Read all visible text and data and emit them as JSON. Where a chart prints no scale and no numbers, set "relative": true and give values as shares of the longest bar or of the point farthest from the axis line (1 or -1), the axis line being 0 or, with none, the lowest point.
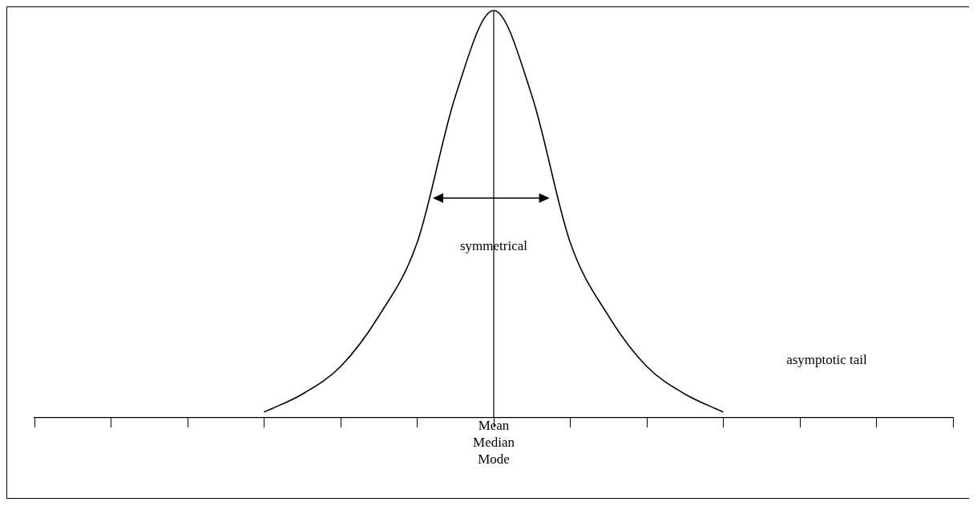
{
  "chart_data": {
    "type": "line",
    "relative": true,
    "categories": [
      null,
      null,
      null,
      null,
      null,
      null,
      null,
      null,
      null,
      null,
      null,
      null,
      null,
      null,
      null,
      null,
      null,
      null,
      null,
      null,
      null,
      null,
      null,
      null,
      null
    ],
    "series": [
      {
        "color": "#000000",
        "values": [
          null,
          null,
          null,
          null,
          null,
          null,
          0.014,
          0.058,
          0.126,
          0.25,
          0.43,
          0.79,
          1,
          0.79,
          0.43,
          0.25,
          0.126,
          0.058,
          0.014,
          null,
          null,
          null,
          null,
          null,
          null
        ]
      }
    ],
    "grid": false,
    "legend": false,
    "marker": "none",
    "line_style": "solid",
    "annotations": [
      "Mean\nMedian\nMode",
      "symmetrical",
      "asymptotic tail"
    ]
  }
}
